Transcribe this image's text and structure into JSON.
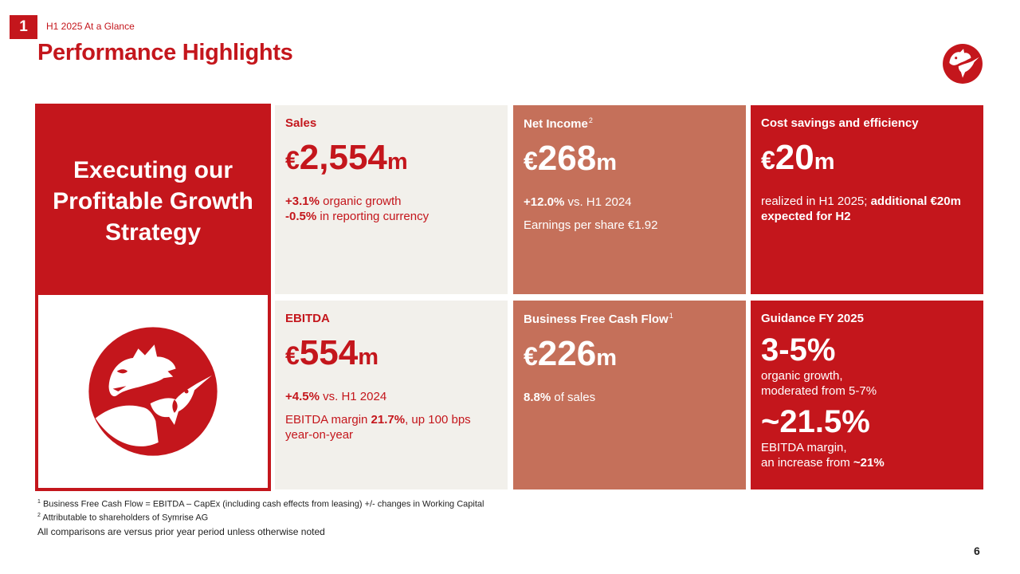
{
  "header": {
    "section_number": "1",
    "section_label": "H1 2025 At a Glance",
    "title": "Performance Highlights"
  },
  "strategy": {
    "line1": "Executing our",
    "line2": "Profitable Growth",
    "line3": "Strategy"
  },
  "cards": {
    "sales": {
      "title": "Sales",
      "currency": "€",
      "value": "2,554",
      "unit": "m",
      "l1_bold": "+3.1%",
      "l1_text": " organic growth",
      "l2_bold": "-0.5%",
      "l2_text": " in reporting currency"
    },
    "net_income": {
      "title": "Net Income",
      "title_sup": "2",
      "currency": "€",
      "value": "268",
      "unit": "m",
      "l1_bold": "+12.0%",
      "l1_text": " vs. H1 2024",
      "l2_text": "Earnings per share €1.92"
    },
    "cost_savings": {
      "title": "Cost savings and efficiency",
      "currency": "€",
      "value": "20",
      "unit": "m",
      "l1_text": "realized in H1 2025; ",
      "l1_bold": "additional €20m expected for H2"
    },
    "ebitda": {
      "title": "EBITDA",
      "currency": "€",
      "value": "554",
      "unit": "m",
      "l1_bold": "+4.5%",
      "l1_text": " vs. H1 2024",
      "l2_pre": "EBITDA margin ",
      "l2_bold": "21.7%",
      "l2_post": ", up 100 bps year-on-year"
    },
    "bfcf": {
      "title": "Business Free Cash Flow",
      "title_sup": "1",
      "currency": "€",
      "value": "226",
      "unit": "m",
      "l1_bold": "8.8%",
      "l1_text": " of sales"
    },
    "guidance": {
      "title": "Guidance FY 2025",
      "value1": "3-5%",
      "text1a": "organic growth,",
      "text1b": "moderated from 5-7%",
      "value2": "~21.5%",
      "text2a": "EBITDA margin,",
      "text2b": "an increase from ",
      "text2b_bold": "~21%"
    }
  },
  "footnotes": {
    "fn1_mark": "1",
    "fn1": " Business Free Cash Flow = EBITDA – CapEx (including cash effects from leasing) +/- changes in Working Capital",
    "fn2_mark": "2",
    "fn2": " Attributable to shareholders of Symrise AG",
    "note": "All comparisons are versus prior year period unless otherwise noted"
  },
  "page_number": "6",
  "colors": {
    "brand_red": "#c4161c",
    "salmon": "#c5705a",
    "beige": "#f2f0eb"
  },
  "icons": {
    "logo": "dragon-hummingbird-logo-icon"
  }
}
